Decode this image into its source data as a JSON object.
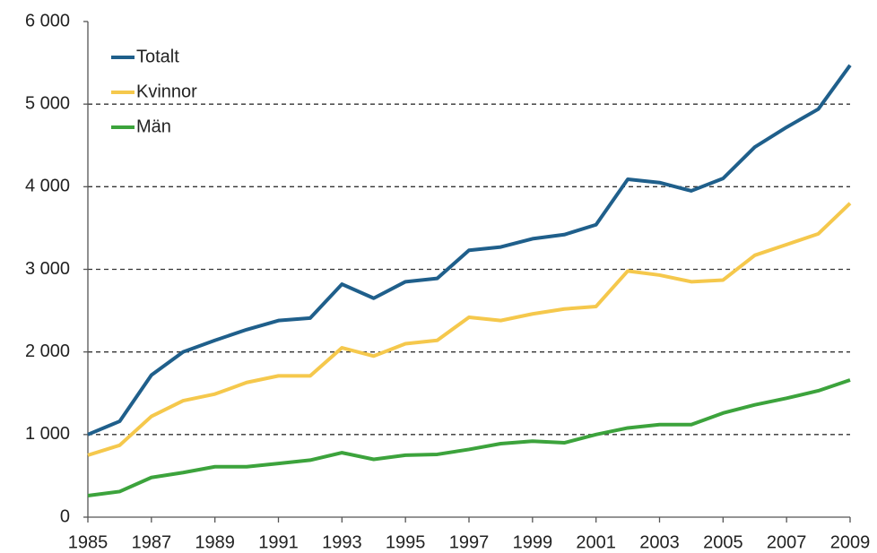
{
  "chart_data": {
    "type": "line",
    "x": [
      1985,
      1986,
      1987,
      1988,
      1989,
      1990,
      1991,
      1992,
      1993,
      1994,
      1995,
      1996,
      1997,
      1998,
      1999,
      2000,
      2001,
      2002,
      2003,
      2004,
      2005,
      2006,
      2007,
      2008,
      2009
    ],
    "series": [
      {
        "name": "Totalt",
        "color": "#1f5f8b",
        "values": [
          1000,
          1160,
          1720,
          2000,
          2140,
          2270,
          2380,
          2410,
          2820,
          2650,
          2850,
          2890,
          3230,
          3270,
          3370,
          3420,
          3540,
          4090,
          4050,
          3950,
          4100,
          4480,
          4720,
          4940,
          5470
        ]
      },
      {
        "name": "Kvinnor",
        "color": "#f5c84c",
        "values": [
          750,
          870,
          1220,
          1410,
          1490,
          1630,
          1710,
          1710,
          2050,
          1950,
          2100,
          2140,
          2420,
          2380,
          2460,
          2520,
          2550,
          2980,
          2930,
          2850,
          2870,
          3170,
          3300,
          3430,
          3800
        ]
      },
      {
        "name": "Män",
        "color": "#3ca33c",
        "values": [
          260,
          310,
          480,
          540,
          610,
          610,
          650,
          690,
          780,
          700,
          750,
          760,
          820,
          890,
          920,
          900,
          1000,
          1080,
          1120,
          1120,
          1260,
          1360,
          1440,
          1530,
          1660
        ]
      }
    ],
    "xlim": [
      1985,
      2009
    ],
    "xticks": [
      1985,
      1987,
      1989,
      1991,
      1993,
      1995,
      1997,
      1999,
      2001,
      2003,
      2005,
      2007,
      2009
    ],
    "ylim": [
      0,
      6000
    ],
    "yticks": [
      0,
      {
        "value": 1000,
        "label": "1 000"
      },
      {
        "value": 2000,
        "label": "2 000"
      },
      {
        "value": 3000,
        "label": "3 000"
      },
      {
        "value": 4000,
        "label": "4 000"
      },
      {
        "value": 5000,
        "label": "5 000"
      },
      {
        "value": 6000,
        "label": "6 000"
      }
    ],
    "grid": true,
    "legend": "top-left"
  }
}
